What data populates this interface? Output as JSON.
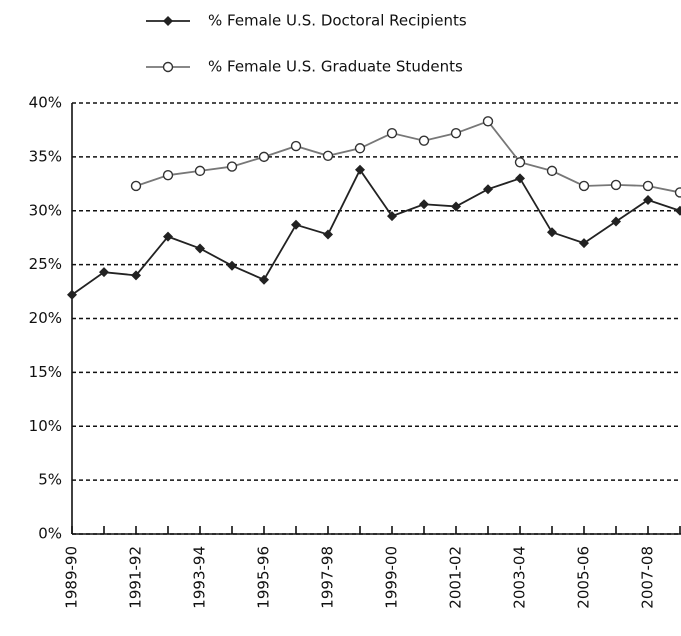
{
  "chart_data": {
    "type": "line",
    "categories": [
      "1989-90",
      null,
      "1991-92",
      null,
      "1993-94",
      null,
      "1995-96",
      null,
      "1997-98",
      null,
      "1999-00",
      null,
      "2001-02",
      null,
      "2003-04",
      null,
      "2005-06",
      null,
      "2007-08",
      null
    ],
    "series": [
      {
        "name": "% Female U.S. Doctoral Recipients",
        "color": "#222222",
        "marker": "diamond",
        "values": [
          22.2,
          24.3,
          24.0,
          27.6,
          26.5,
          24.9,
          23.6,
          28.7,
          27.8,
          33.8,
          29.5,
          30.6,
          30.4,
          32.0,
          33.0,
          28.0,
          27.0,
          29.0,
          31.0,
          30.0
        ]
      },
      {
        "name": "% Female U.S. Graduate Students",
        "color": "#777777",
        "marker": "open-circle",
        "values": [
          null,
          null,
          32.3,
          33.3,
          33.7,
          34.1,
          35.0,
          36.0,
          35.1,
          35.8,
          37.2,
          36.5,
          37.2,
          38.3,
          34.5,
          33.7,
          32.3,
          32.4,
          32.3,
          31.7
        ]
      }
    ],
    "ylim": [
      0,
      40
    ],
    "yticks": [
      {
        "value": 0,
        "label": "0%"
      },
      {
        "value": 5,
        "label": "5%"
      },
      {
        "value": 10,
        "label": "10%"
      },
      {
        "value": 15,
        "label": "15%"
      },
      {
        "value": 20,
        "label": "20%"
      },
      {
        "value": 25,
        "label": "25%"
      },
      {
        "value": 30,
        "label": "30%"
      },
      {
        "value": 35,
        "label": "35%"
      },
      {
        "value": 40,
        "label": "40%"
      }
    ],
    "grid": true,
    "legend": "top"
  }
}
